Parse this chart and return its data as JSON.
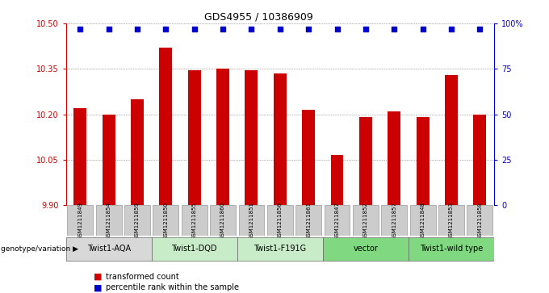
{
  "title": "GDS4955 / 10386909",
  "samples": [
    "GSM1211849",
    "GSM1211854",
    "GSM1211859",
    "GSM1211850",
    "GSM1211855",
    "GSM1211860",
    "GSM1211851",
    "GSM1211856",
    "GSM1211861",
    "GSM1211847",
    "GSM1211852",
    "GSM1211857",
    "GSM1211848",
    "GSM1211853",
    "GSM1211858"
  ],
  "bar_values": [
    10.22,
    10.2,
    10.25,
    10.42,
    10.345,
    10.35,
    10.345,
    10.335,
    10.215,
    10.065,
    10.19,
    10.21,
    10.19,
    10.33,
    10.2
  ],
  "percentile_values": [
    97,
    97,
    97,
    97,
    97,
    97,
    97,
    97,
    97,
    97,
    97,
    97,
    97,
    97,
    97
  ],
  "bar_color": "#cc0000",
  "percentile_color": "#0000cc",
  "ylim_left": [
    9.9,
    10.5
  ],
  "ylim_right": [
    0,
    100
  ],
  "yticks_left": [
    9.9,
    10.05,
    10.2,
    10.35,
    10.5
  ],
  "yticks_right": [
    0,
    25,
    50,
    75,
    100
  ],
  "ytick_labels_right": [
    "0",
    "25",
    "50",
    "75",
    "100%"
  ],
  "groups": [
    {
      "label": "Twist1-AQA",
      "start": 0,
      "end": 3,
      "color": "#d8d8d8"
    },
    {
      "label": "Twist1-DQD",
      "start": 3,
      "end": 6,
      "color": "#c8ecc8"
    },
    {
      "label": "Twist1-F191G",
      "start": 6,
      "end": 9,
      "color": "#c8ecc8"
    },
    {
      "label": "vector",
      "start": 9,
      "end": 12,
      "color": "#80d880"
    },
    {
      "label": "Twist1-wild type",
      "start": 12,
      "end": 15,
      "color": "#80d880"
    }
  ],
  "genotype_label": "genotype/variation",
  "legend_bar_label": "transformed count",
  "legend_pct_label": "percentile rank within the sample",
  "background_color": "#ffffff",
  "grid_color": "#666666",
  "sample_box_color": "#cccccc"
}
